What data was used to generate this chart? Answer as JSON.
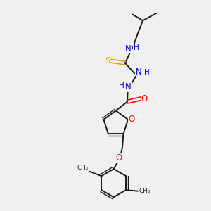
{
  "bg_color": "#f0f0f0",
  "bond_color": "#1a1a1a",
  "N_color": "#0000cd",
  "O_color": "#ff0000",
  "S_color": "#ccaa00",
  "figsize": [
    3.0,
    3.0
  ],
  "dpi": 100,
  "xlim": [
    0,
    10
  ],
  "ylim": [
    0,
    10
  ]
}
